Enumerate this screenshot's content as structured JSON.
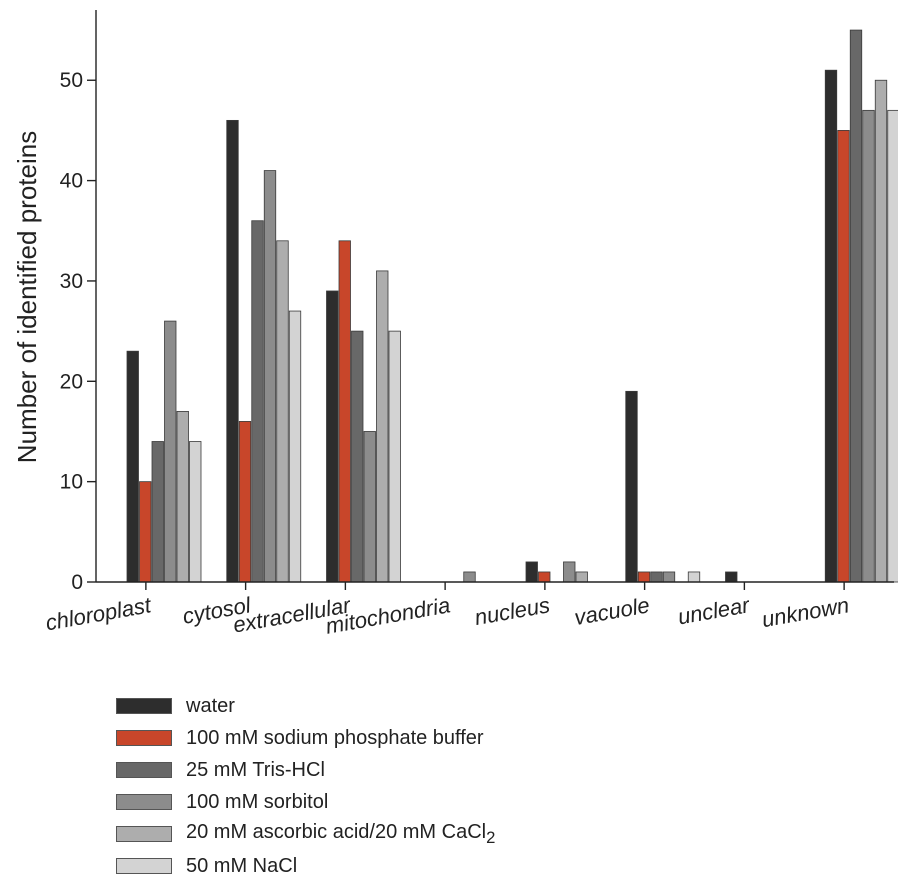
{
  "chart_data": {
    "type": "bar",
    "title": "",
    "xlabel": "",
    "ylabel": "Number of identified proteins",
    "ylim": [
      0,
      57
    ],
    "yticks": [
      0,
      10,
      20,
      30,
      40,
      50
    ],
    "grid": false,
    "legend_position": "bottom-left",
    "categories": [
      "chloroplast",
      "cytosol",
      "extracellular",
      "mitochondria",
      "nucleus",
      "vacuole",
      "unclear",
      "unknown"
    ],
    "series": [
      {
        "name": "water",
        "color": "#2d2d2d",
        "values": [
          23,
          46,
          29,
          0,
          2,
          19,
          1,
          51
        ]
      },
      {
        "name": "100 mM sodium phosphate buffer",
        "color": "#c8462a",
        "values": [
          10,
          16,
          34,
          0,
          1,
          1,
          0,
          45
        ]
      },
      {
        "name": "25 mM Tris-HCl",
        "color": "#686868",
        "values": [
          14,
          36,
          25,
          0,
          0,
          1,
          0,
          55
        ]
      },
      {
        "name": "100 mM sorbitol",
        "color": "#8c8c8c",
        "values": [
          26,
          41,
          15,
          1,
          2,
          1,
          0,
          47
        ]
      },
      {
        "name": "20 mM ascorbic acid/20 mM CaCl",
        "name_subscript": "2",
        "color": "#adadad",
        "values": [
          17,
          34,
          31,
          0,
          1,
          0,
          0,
          50
        ]
      },
      {
        "name": "50 mM NaCl",
        "color": "#d3d3d3",
        "values": [
          14,
          27,
          25,
          0,
          0,
          1,
          0,
          47
        ]
      }
    ]
  }
}
